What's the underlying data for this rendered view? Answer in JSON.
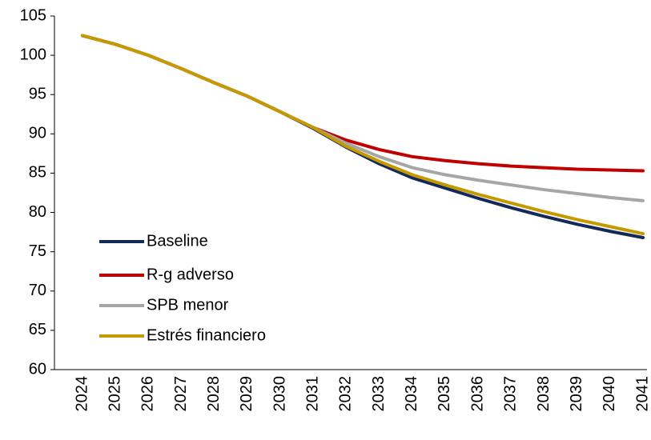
{
  "chart_data": {
    "type": "line",
    "categories": [
      "2024",
      "2025",
      "2026",
      "2027",
      "2028",
      "2029",
      "2030",
      "2031",
      "2032",
      "2033",
      "2034",
      "2035",
      "2036",
      "2037",
      "2038",
      "2039",
      "2040",
      "2041"
    ],
    "series": [
      {
        "name": "Baseline",
        "color": "#13295b",
        "values": [
          102.5,
          101.4,
          100.0,
          98.3,
          96.5,
          94.8,
          92.8,
          90.7,
          88.3,
          86.2,
          84.4,
          83.1,
          81.8,
          80.6,
          79.5,
          78.5,
          77.6,
          76.8
        ]
      },
      {
        "name": "R-g adverso",
        "color": "#c00000",
        "values": [
          102.5,
          101.4,
          100.0,
          98.3,
          96.5,
          94.8,
          92.8,
          90.8,
          89.2,
          88.0,
          87.1,
          86.6,
          86.2,
          85.9,
          85.7,
          85.5,
          85.4,
          85.3
        ]
      },
      {
        "name": "SPB menor",
        "color": "#a6a6a6",
        "values": [
          102.5,
          101.4,
          100.0,
          98.3,
          96.5,
          94.8,
          92.8,
          90.8,
          88.8,
          87.1,
          85.7,
          84.8,
          84.1,
          83.5,
          82.9,
          82.4,
          81.9,
          81.5
        ]
      },
      {
        "name": "Estrés financiero",
        "color": "#c49a00",
        "values": [
          102.5,
          101.4,
          100.0,
          98.3,
          96.5,
          94.8,
          92.8,
          90.8,
          88.4,
          86.5,
          84.8,
          83.5,
          82.3,
          81.2,
          80.1,
          79.1,
          78.2,
          77.3
        ]
      }
    ],
    "ylim": [
      60,
      105
    ],
    "yticks": [
      60,
      65,
      70,
      75,
      80,
      85,
      90,
      95,
      100,
      105
    ],
    "legend": "lower left"
  }
}
